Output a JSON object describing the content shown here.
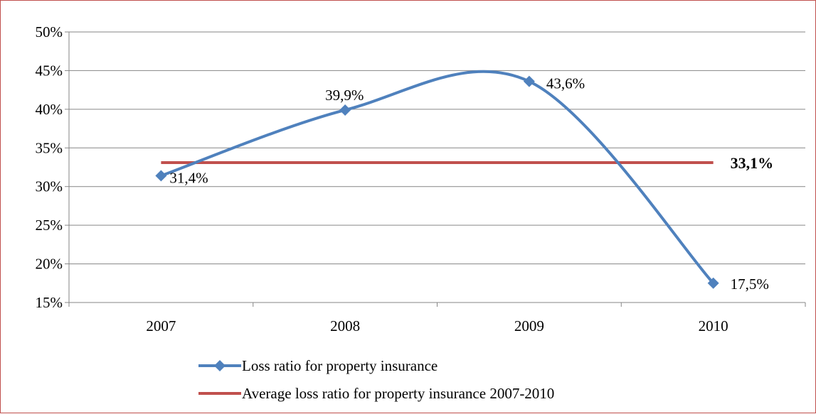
{
  "chart_data": {
    "type": "line",
    "categories": [
      "2007",
      "2008",
      "2009",
      "2010"
    ],
    "series": [
      {
        "name": "Loss ratio for property insurance",
        "values": [
          31.4,
          39.9,
          43.6,
          17.5
        ],
        "labels": [
          "31,4%",
          "39,9%",
          "43,6%",
          "17,5%"
        ],
        "color": "#4f81bd",
        "marker": "diamond",
        "smooth": true
      },
      {
        "name": "Average loss ratio for property insurance 2007-2010",
        "values": [
          33.1,
          33.1,
          33.1,
          33.1
        ],
        "label": "33,1%",
        "color": "#c0504d"
      }
    ],
    "yticks": [
      "15%",
      "20%",
      "25%",
      "30%",
      "35%",
      "40%",
      "45%",
      "50%"
    ],
    "ylim": [
      15,
      50
    ],
    "grid": true,
    "legend_position": "bottom",
    "title": "",
    "xlabel": "",
    "ylabel": ""
  }
}
